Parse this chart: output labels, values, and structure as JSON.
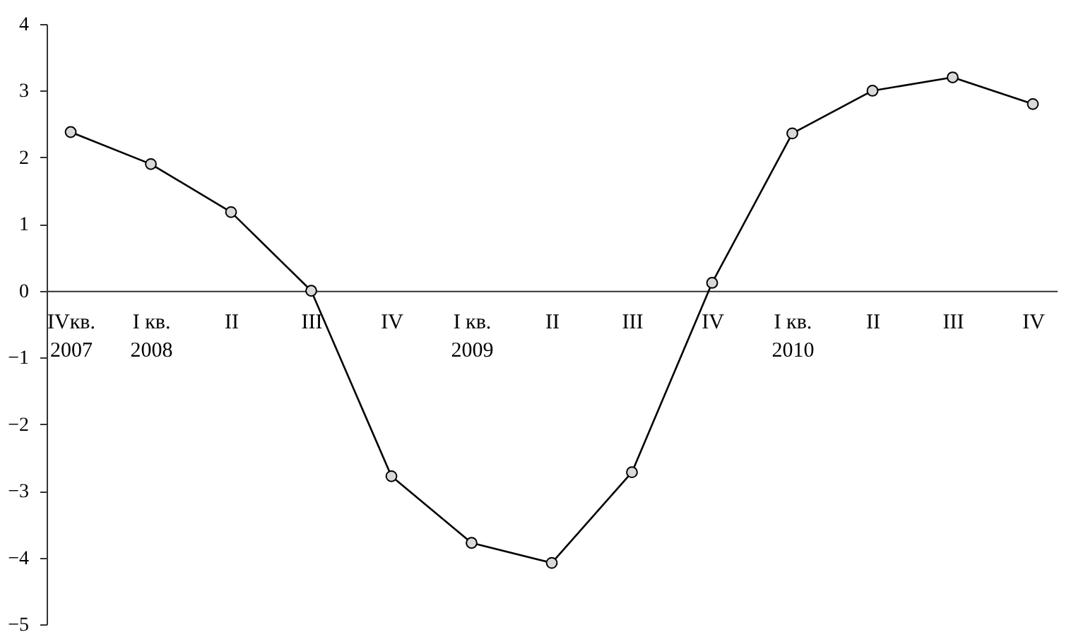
{
  "chart_data": {
    "type": "line",
    "categories": [
      "IVкв.\n2007",
      "I кв.\n2008",
      "II",
      "III",
      "IV",
      "I кв.\n2009",
      "II",
      "III",
      "IV",
      "I кв.\n2010",
      "II",
      "III",
      "IV"
    ],
    "series": [
      {
        "color": "#000000",
        "values": [
          2.38,
          1.9,
          1.18,
          0,
          -2.78,
          -3.78,
          -4.08,
          -2.72,
          0.12,
          2.36,
          3.0,
          3.2,
          2.8
        ]
      }
    ],
    "ylim": [
      -5,
      4
    ],
    "yticks": [
      -5,
      -4,
      -3,
      -2,
      -1,
      0,
      1,
      2,
      3,
      4
    ],
    "marker": "circle",
    "line_style": "solid",
    "grid": false
  }
}
